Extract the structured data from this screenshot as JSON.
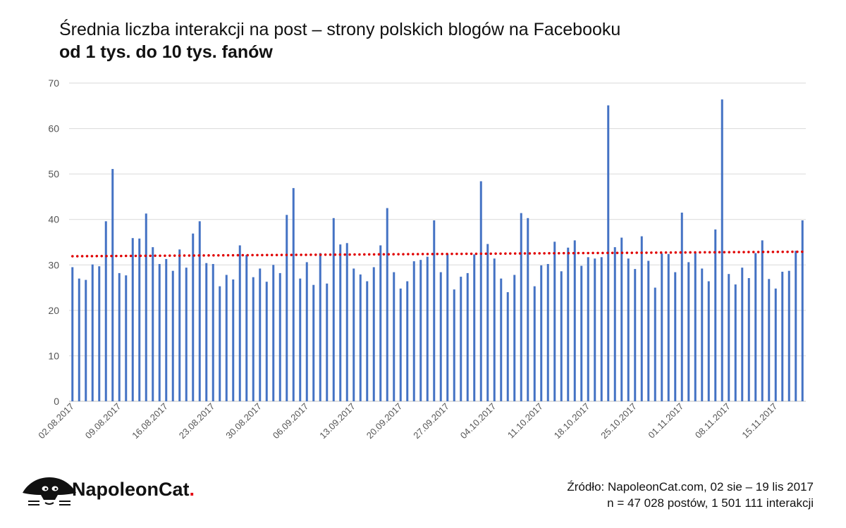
{
  "title": "Średnia liczba interakcji na post – strony polskich blogów na Facebooku",
  "subtitle": "od 1 tys. do 10 tys. fanów",
  "brand": {
    "name": "NapoleonCat",
    "dot": ".",
    "accent": "#e30613"
  },
  "source": {
    "line1": "Źródło: NapoleonCat.com, 02 sie – 19 lis 2017",
    "line2": "n = 47 028 postów, 1 501 111 interakcji"
  },
  "colors": {
    "bar": "#4472c4",
    "trend": "#e00000",
    "grid": "#d9d9d9"
  },
  "chart_data": {
    "type": "bar",
    "title": "Średnia liczba interakcji na post – strony polskich blogów na Facebooku",
    "subtitle": "od 1 tys. do 10 tys. fanów",
    "xlabel": "",
    "ylabel": "",
    "ylim": [
      0,
      70
    ],
    "yticks": [
      0,
      10,
      20,
      30,
      40,
      50,
      60,
      70
    ],
    "grid": true,
    "x_start": "02.08.2017",
    "x_end": "19.11.2017",
    "x_tick_labels": [
      "02.08.2017",
      "09.08.2017",
      "16.08.2017",
      "23.08.2017",
      "30.08.2017",
      "06.09.2017",
      "13.09.2017",
      "20.09.2017",
      "27.09.2017",
      "04.10.2017",
      "11.10.2017",
      "18.10.2017",
      "25.10.2017",
      "01.11.2017",
      "08.11.2017",
      "15.11.2017"
    ],
    "series": [
      {
        "name": "Średnia liczba interakcji na post",
        "values": [
          29.5,
          27.0,
          26.7,
          30.1,
          29.7,
          39.6,
          51.1,
          28.2,
          27.7,
          35.9,
          35.8,
          41.3,
          33.9,
          30.2,
          31.3,
          28.7,
          33.4,
          29.4,
          36.9,
          39.6,
          30.4,
          30.2,
          25.3,
          27.8,
          26.8,
          34.3,
          32.2,
          27.3,
          29.2,
          26.3,
          30.0,
          28.2,
          41.0,
          46.9,
          27.0,
          30.6,
          25.6,
          32.6,
          25.9,
          40.3,
          34.5,
          34.8,
          29.2,
          27.9,
          26.4,
          29.5,
          34.3,
          42.5,
          28.4,
          24.8,
          26.4,
          30.8,
          31.1,
          31.8,
          39.8,
          28.4,
          32.4,
          24.6,
          27.4,
          28.2,
          32.3,
          48.4,
          34.6,
          31.4,
          27.0,
          24.0,
          27.8,
          41.4,
          40.3,
          25.3,
          29.9,
          30.2,
          35.1,
          28.6,
          33.8,
          35.4,
          29.8,
          31.7,
          31.4,
          31.7,
          65.1,
          33.9,
          36.0,
          31.4,
          29.1,
          36.3,
          30.9,
          25.0,
          32.5,
          32.4,
          28.4,
          41.5,
          30.6,
          32.7,
          29.2,
          26.4,
          37.8,
          66.4,
          28.0,
          25.7,
          29.4,
          27.1,
          32.6,
          35.4,
          26.9,
          24.8,
          28.5,
          28.7,
          33.1,
          39.8
        ]
      },
      {
        "name": "Trend liniowy",
        "type": "trendline",
        "values": [
          31.9,
          32.9
        ]
      }
    ]
  }
}
